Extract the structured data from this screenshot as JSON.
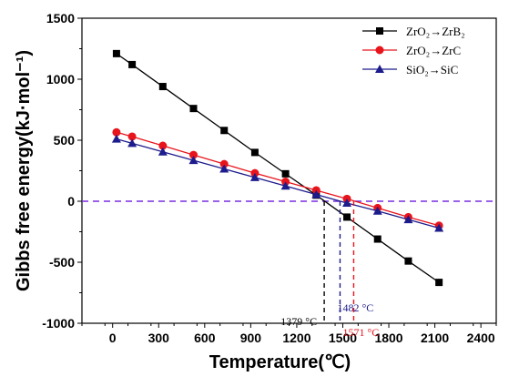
{
  "chart_data": {
    "type": "line",
    "xlabel": "Temperature(℃)",
    "ylabel": "Gibbs free energy(kJ·mol⁻¹)",
    "xlim": [
      -200,
      2500
    ],
    "ylim": [
      -1000,
      1500
    ],
    "xticks": [
      0,
      300,
      600,
      900,
      1200,
      1500,
      1800,
      2100,
      2400
    ],
    "yticks": [
      -1000,
      -500,
      0,
      500,
      1000,
      1500
    ],
    "grid": false,
    "legend_position": "top-right",
    "series": [
      {
        "name": "ZrO₂→ZrB₂",
        "color": "#000000",
        "marker": "square",
        "x": [
          25,
          127,
          327,
          527,
          727,
          927,
          1127,
          1327,
          1527,
          1727,
          1927,
          2127
        ],
        "y": [
          1210,
          1120,
          940,
          760,
          580,
          400,
          225,
          50,
          -130,
          -310,
          -490,
          -665
        ]
      },
      {
        "name": "ZrO₂→ZrC",
        "color": "#e8141c",
        "marker": "circle",
        "x": [
          25,
          127,
          327,
          527,
          727,
          927,
          1127,
          1327,
          1527,
          1727,
          1927,
          2127
        ],
        "y": [
          565,
          530,
          455,
          380,
          305,
          230,
          160,
          90,
          20,
          -55,
          -130,
          -200
        ]
      },
      {
        "name": "SiO₂→SiC",
        "color": "#1c1c8c",
        "marker": "triangle",
        "x": [
          25,
          127,
          327,
          527,
          727,
          927,
          1127,
          1327,
          1527,
          1727,
          1927,
          2127
        ],
        "y": [
          510,
          475,
          405,
          335,
          265,
          195,
          125,
          55,
          -15,
          -80,
          -150,
          -220
        ]
      }
    ],
    "reference_line": {
      "y": 0,
      "color": "#7a2be0",
      "style": "dashed"
    },
    "annotations": [
      {
        "text": "1379 °C",
        "x": 1379,
        "color": "#000000"
      },
      {
        "text": "1482 °C",
        "x": 1482,
        "color": "#1c1c8c"
      },
      {
        "text": "1571 °C",
        "x": 1571,
        "color": "#e8141c"
      }
    ]
  }
}
